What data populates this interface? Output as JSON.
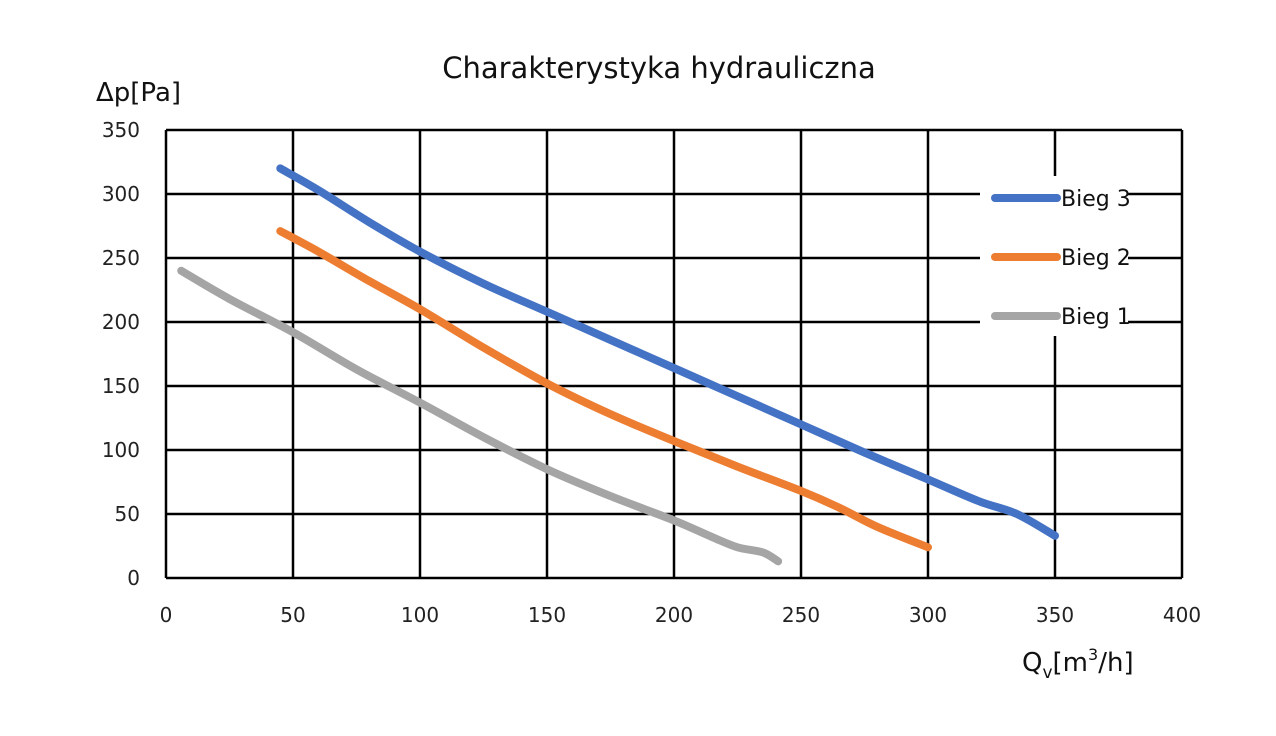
{
  "chart_data": {
    "type": "line",
    "title": "Charakterystyka hydrauliczna",
    "ylabel": "Δp[Pa]",
    "xlabel": "Qv[m3/h]",
    "xlabel_parts": {
      "main": "Q",
      "sub": "v",
      "open": "[m",
      "sup": "3",
      "close": "/h]"
    },
    "xlim": [
      0,
      400
    ],
    "ylim": [
      0,
      350
    ],
    "x_ticks": [
      0,
      50,
      100,
      150,
      200,
      250,
      300,
      350,
      400
    ],
    "y_ticks": [
      0,
      50,
      100,
      150,
      200,
      250,
      300,
      350
    ],
    "grid": true,
    "legend_position": "right-inside",
    "series": [
      {
        "name": "Bieg 3",
        "color": "#4472C4",
        "x": [
          45,
          60,
          80,
          100,
          125,
          150,
          175,
          200,
          225,
          250,
          275,
          300,
          320,
          335,
          350
        ],
        "y": [
          320,
          303,
          278,
          255,
          230,
          208,
          186,
          164,
          142,
          120,
          98,
          77,
          60,
          50,
          33
        ]
      },
      {
        "name": "Bieg 2",
        "color": "#ED7D31",
        "x": [
          45,
          60,
          80,
          100,
          125,
          150,
          175,
          200,
          225,
          250,
          265,
          280,
          300
        ],
        "y": [
          271,
          255,
          232,
          210,
          180,
          152,
          128,
          107,
          87,
          68,
          55,
          40,
          24
        ]
      },
      {
        "name": "Bieg 1",
        "color": "#A5A5A5",
        "x": [
          6,
          25,
          50,
          75,
          100,
          125,
          150,
          175,
          200,
          215,
          225,
          235,
          241
        ],
        "y": [
          240,
          218,
          192,
          163,
          137,
          110,
          85,
          64,
          45,
          32,
          24,
          20,
          13
        ]
      }
    ]
  }
}
